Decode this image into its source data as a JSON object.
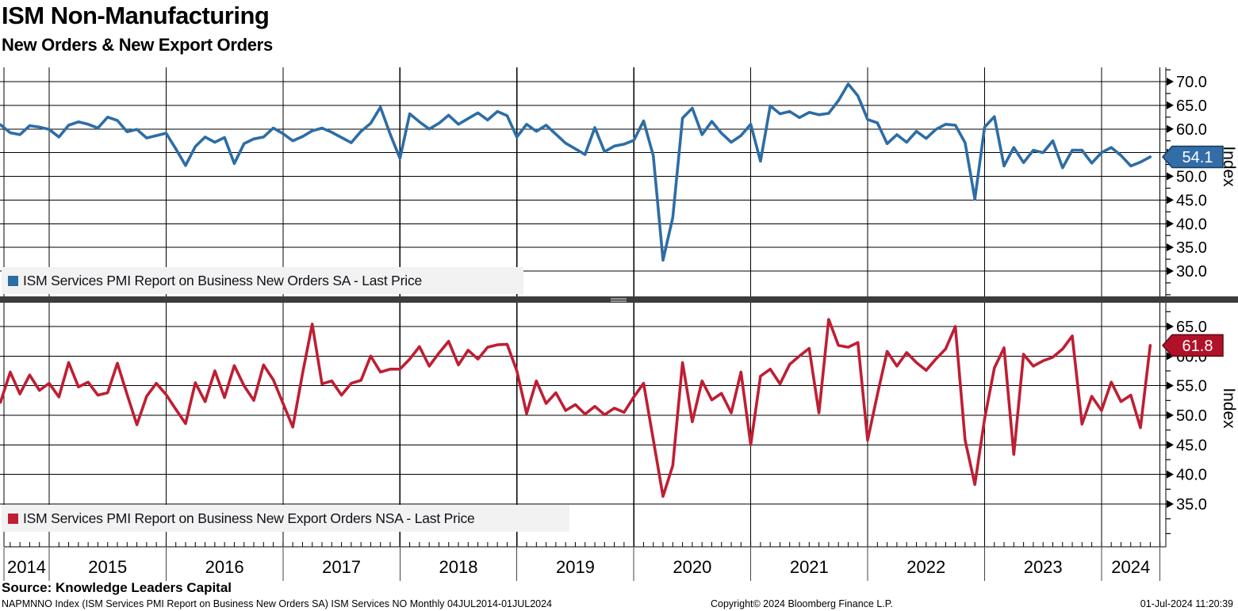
{
  "header": {
    "title": "ISM Non-Manufacturing",
    "subtitle": "New Orders & New Export Orders"
  },
  "colors": {
    "blue_line": "#2d6da5",
    "blue_tag": "#336da8",
    "blue_tag_border": "#173a5e",
    "red_line": "#bf1e33",
    "red_tag": "#b11228",
    "red_tag_border": "#5e0a16",
    "grid": "#000000",
    "legend_bg": "#f2f2f2",
    "divider": "#3c3c3c",
    "tag_text": "#ffffff"
  },
  "x_axis": {
    "years": [
      "2014",
      "2015",
      "2016",
      "2017",
      "2018",
      "2019",
      "2020",
      "2021",
      "2022",
      "2023",
      "2024"
    ],
    "start_month": "2014-07",
    "end_month": "2024-06",
    "frequency": "Monthly"
  },
  "chart_data": [
    {
      "type": "line",
      "name": "new-orders-sa",
      "legend": "ISM Services PMI Report on Business New Orders SA - Last Price",
      "axis_title": "Index",
      "y_ticks": [
        70.0,
        65.0,
        60.0,
        55.0,
        50.0,
        45.0,
        40.0,
        35.0,
        30.0
      ],
      "ylim": [
        24.0,
        73.0
      ],
      "last_price": "54.1",
      "x_monthly_start": "2014-07",
      "values": [
        60.4,
        60.9,
        59.2,
        58.8,
        60.7,
        60.4,
        59.9,
        58.3,
        60.8,
        61.5,
        61.0,
        60.2,
        62.5,
        61.8,
        59.4,
        59.9,
        58.1,
        58.6,
        59.1,
        55.8,
        52.3,
        56.3,
        58.3,
        57.2,
        58.2,
        52.7,
        56.9,
        57.9,
        58.3,
        60.2,
        59.0,
        57.5,
        58.4,
        59.6,
        60.2,
        59.3,
        58.2,
        57.1,
        59.5,
        61.2,
        64.6,
        58.9,
        53.8,
        63.2,
        61.5,
        60.0,
        61.2,
        62.9,
        61.0,
        62.2,
        63.4,
        61.9,
        63.7,
        62.8,
        58.3,
        61.0,
        59.5,
        60.8,
        58.9,
        57.0,
        55.8,
        54.6,
        60.3,
        55.2,
        56.4,
        56.8,
        57.6,
        61.7,
        54.4,
        32.3,
        41.3,
        62.3,
        64.4,
        58.8,
        61.6,
        59.1,
        57.2,
        58.6,
        61.0,
        53.2,
        64.9,
        63.2,
        63.7,
        62.4,
        63.5,
        63.0,
        63.3,
        66.0,
        69.5,
        67.0,
        62.0,
        61.3,
        56.9,
        58.8,
        57.2,
        59.5,
        58.0,
        59.9,
        61.0,
        60.8,
        57.1,
        45.2,
        60.4,
        62.6,
        52.2,
        56.1,
        52.9,
        55.5,
        55.0,
        57.5,
        51.8,
        55.5,
        55.5,
        52.8,
        55.0,
        56.1,
        54.4,
        52.2,
        53.0,
        54.1
      ]
    },
    {
      "type": "line",
      "name": "new-export-orders-nsa",
      "legend": "ISM Services PMI Report on Business New Export Orders NSA - Last Price",
      "axis_title": "Index",
      "y_ticks": [
        65.0,
        60.0,
        55.0,
        50.0,
        45.0,
        40.0,
        35.0
      ],
      "ylim": [
        28.0,
        68.5
      ],
      "last_price": "61.8",
      "x_monthly_start": "2014-07",
      "values": [
        53.0,
        52.2,
        57.3,
        53.6,
        56.8,
        54.2,
        55.4,
        53.1,
        58.9,
        54.8,
        55.6,
        53.4,
        53.8,
        58.8,
        53.5,
        48.4,
        53.2,
        55.4,
        53.5,
        51.0,
        48.6,
        55.5,
        52.3,
        57.5,
        53.0,
        58.4,
        55.0,
        52.5,
        58.5,
        56.0,
        52.0,
        48.0,
        57.0,
        65.4,
        55.3,
        55.8,
        53.4,
        55.4,
        55.9,
        60.0,
        57.3,
        57.8,
        57.8,
        59.5,
        61.6,
        58.3,
        60.5,
        62.5,
        58.5,
        61.0,
        59.5,
        61.5,
        61.9,
        62.0,
        57.5,
        50.3,
        55.8,
        52.0,
        53.8,
        50.8,
        51.8,
        50.2,
        51.5,
        50.1,
        51.2,
        50.5,
        53.1,
        55.4,
        45.9,
        36.3,
        41.5,
        58.9,
        48.9,
        55.8,
        52.6,
        53.7,
        50.4,
        57.3,
        45.0,
        56.6,
        57.8,
        55.3,
        58.6,
        60.0,
        61.3,
        50.4,
        66.2,
        61.8,
        61.5,
        62.3,
        45.8,
        53.5,
        60.8,
        58.3,
        60.6,
        58.9,
        57.6,
        59.5,
        61.2,
        65.0,
        45.8,
        38.3,
        49.4,
        58.0,
        61.4,
        43.4,
        60.3,
        58.3,
        59.2,
        59.8,
        61.2,
        63.4,
        48.5,
        53.2,
        50.8,
        55.6,
        52.3,
        53.4,
        47.9,
        61.8
      ]
    }
  ],
  "footer": {
    "source": "Source: Knowledge Leaders Capital",
    "ticker_line": "NAPMNNO Index (ISM Services PMI Report on Business New Orders SA) ISM Services NO  Monthly 04JUL2014-01JUL2024",
    "copyright": "Copyright© 2024 Bloomberg Finance L.P.",
    "timestamp": "01-Jul-2024 11:20:39"
  }
}
